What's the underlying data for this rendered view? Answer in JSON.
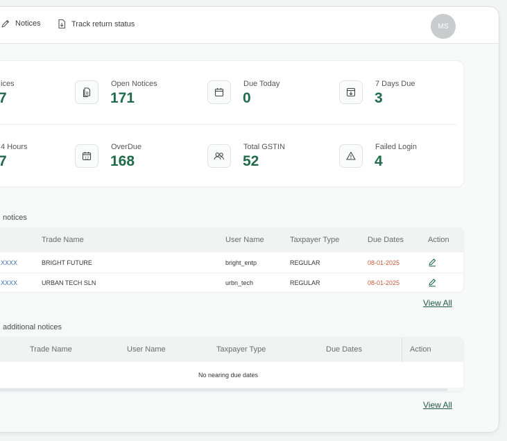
{
  "nav": {
    "notices_label": "Notices",
    "track_label": "Track return status",
    "avatar_initials": "MS"
  },
  "stats": [
    {
      "label": "ices",
      "value": "7",
      "icon": "none"
    },
    {
      "label": "Open Notices",
      "value": "171",
      "icon": "document-icon"
    },
    {
      "label": "Due Today",
      "value": "0",
      "icon": "calendar-icon"
    },
    {
      "label": "7 Days Due",
      "value": "3",
      "icon": "download-box-icon"
    },
    {
      "label": "4 Hours",
      "value": "7",
      "icon": "none"
    },
    {
      "label": "OverDue",
      "value": "168",
      "icon": "calendar-12-icon"
    },
    {
      "label": "Total GSTIN",
      "value": "52",
      "icon": "users-icon"
    },
    {
      "label": "Failed Login",
      "value": "4",
      "icon": "warning-icon"
    }
  ],
  "notices": {
    "title": "notices",
    "columns": [
      "Trade Name",
      "User Name",
      "Taxpayer Type",
      "Due Dates",
      "Action"
    ],
    "rows": [
      {
        "id": "XXXX",
        "trade_name": "BRIGHT FUTURE",
        "user_name": "bright_entp",
        "taxpayer_type": "REGULAR",
        "due_date": "08-01-2025"
      },
      {
        "id": "XXXX",
        "trade_name": "URBAN TECH SLN",
        "user_name": "urbn_tech",
        "taxpayer_type": "REGULAR",
        "due_date": "08-01-2025"
      }
    ],
    "view_all": "View All"
  },
  "additional": {
    "title": "additional notices",
    "columns": [
      "Trade Name",
      "User Name",
      "Taxpayer Type",
      "Due Dates",
      "Action"
    ],
    "empty_message": "No nearing due dates",
    "view_all": "View All"
  },
  "colors": {
    "accent": "#1f6b4a",
    "date": "#c25a3a",
    "link": "#3c6fb4"
  }
}
